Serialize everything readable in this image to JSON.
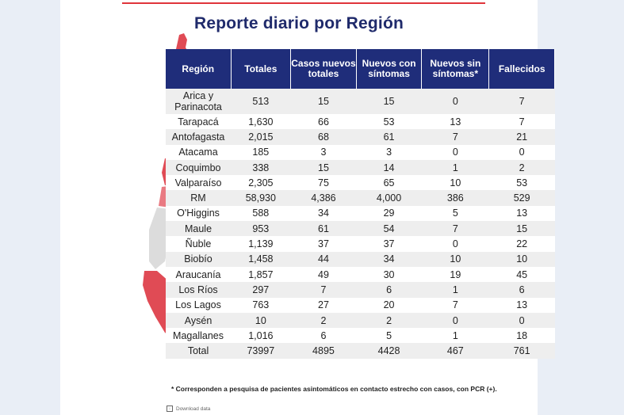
{
  "title": "Reporte diario por Región",
  "headers": [
    "Región",
    "Totales",
    "Casos nuevos totales",
    "Nuevos con síntomas",
    "Nuevos sin síntomas*",
    "Fallecidos"
  ],
  "rows": [
    [
      "Arica y Parinacota",
      "513",
      "15",
      "15",
      "0",
      "7"
    ],
    [
      "Tarapacá",
      "1,630",
      "66",
      "53",
      "13",
      "7"
    ],
    [
      "Antofagasta",
      "2,015",
      "68",
      "61",
      "7",
      "21"
    ],
    [
      "Atacama",
      "185",
      "3",
      "3",
      "0",
      "0"
    ],
    [
      "Coquimbo",
      "338",
      "15",
      "14",
      "1",
      "2"
    ],
    [
      "Valparaíso",
      "2,305",
      "75",
      "65",
      "10",
      "53"
    ],
    [
      "RM",
      "58,930",
      "4,386",
      "4,000",
      "386",
      "529"
    ],
    [
      "O'Higgins",
      "588",
      "34",
      "29",
      "5",
      "13"
    ],
    [
      "Maule",
      "953",
      "61",
      "54",
      "7",
      "15"
    ],
    [
      "Ñuble",
      "1,139",
      "37",
      "37",
      "0",
      "22"
    ],
    [
      "Biobío",
      "1,458",
      "44",
      "34",
      "10",
      "10"
    ],
    [
      "Araucanía",
      "1,857",
      "49",
      "30",
      "19",
      "45"
    ],
    [
      "Los Ríos",
      "297",
      "7",
      "6",
      "1",
      "6"
    ],
    [
      "Los Lagos",
      "763",
      "27",
      "20",
      "7",
      "13"
    ],
    [
      "Aysén",
      "10",
      "2",
      "2",
      "0",
      "0"
    ],
    [
      "Magallanes",
      "1,016",
      "6",
      "5",
      "1",
      "18"
    ],
    [
      "Total",
      "73997",
      "4895",
      "4428",
      "467",
      "761"
    ]
  ],
  "footnote": "* Corresponden a pesquisa de pacientes asintomáticos en contacto estrecho con casos, con PCR (+).",
  "download_label": "Download data",
  "colors": {
    "header_bg": "#1f2d7a",
    "title": "#1f2a6b",
    "accent": "#e0353b"
  }
}
